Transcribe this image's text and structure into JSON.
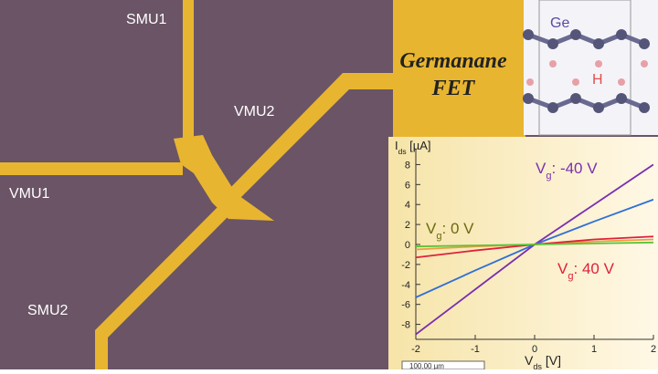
{
  "labels": {
    "smu1": "SMU1",
    "vmu2": "VMU2",
    "vmu1": "VMU1",
    "smu2": "SMU2",
    "title_line1": "Germanane",
    "title_line2": "FET",
    "atom_ge": "Ge",
    "atom_h": "H",
    "scale_bar": "100.00 µm"
  },
  "chart_data": {
    "type": "line",
    "y_label": {
      "main": "I",
      "sub": "ds",
      "rest": " [µA]"
    },
    "x_label": {
      "main": "V",
      "sub": "ds",
      "rest": " [V]"
    },
    "x": [
      -2,
      -1,
      0,
      1,
      2
    ],
    "series": [
      {
        "color": "#7a2fb0",
        "values": [
          -9,
          -4.5,
          0,
          4,
          8
        ]
      },
      {
        "color": "#2f6fd6",
        "values": [
          -5.3,
          -2.6,
          0,
          2.3,
          4.5
        ]
      },
      {
        "color": "#e8a040",
        "values": [
          -0.5,
          -0.2,
          0,
          0.3,
          0.5
        ]
      },
      {
        "color": "#e0203a",
        "values": [
          -1.3,
          -0.6,
          0,
          0.5,
          0.8
        ]
      },
      {
        "color": "#5cc23a",
        "values": [
          -0.2,
          -0.1,
          0,
          0.1,
          0.2
        ]
      }
    ],
    "annotations": [
      {
        "main": "V",
        "sub": "g",
        "rest": ": -40 V",
        "color": "#7a2fb0"
      },
      {
        "main": "V",
        "sub": "g",
        "rest": ": 0 V",
        "color": "#6b6a10"
      },
      {
        "main": "V",
        "sub": "g",
        "rest": ": 40 V",
        "color": "#e0203a"
      }
    ],
    "xlim": [
      -2,
      2
    ],
    "ylim": [
      -9.5,
      9.5
    ],
    "xticks": [
      -2,
      -1,
      0,
      1,
      2
    ],
    "yticks": [
      -8,
      -6,
      -4,
      -2,
      0,
      2,
      4,
      6,
      8
    ]
  }
}
